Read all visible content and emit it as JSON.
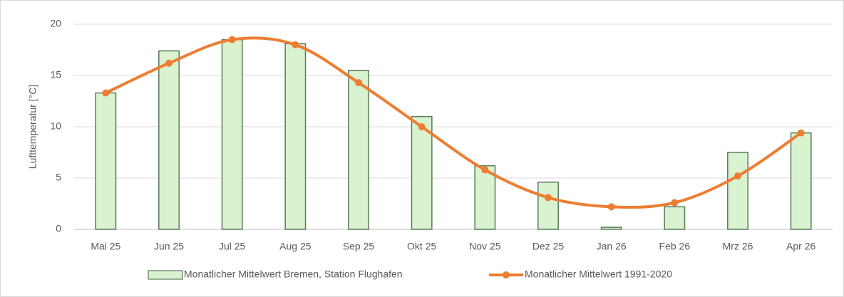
{
  "chart_data": {
    "type": "bar",
    "y_label": "Lufttemperatur [°C]",
    "categories": [
      "Mai 25",
      "Jun 25",
      "Jul 25",
      "Aug 25",
      "Sep 25",
      "Okt 25",
      "Nov 25",
      "Dez 25",
      "Jan 26",
      "Feb 26",
      "Mrz 26",
      "Apr 26"
    ],
    "series": [
      {
        "name": "Monatlicher Mittelwert Bremen, Station Flughafen",
        "type": "bar",
        "color": "#d9f2d0",
        "edge_color": "#5b7a5b",
        "values": [
          13.3,
          17.4,
          18.5,
          18.1,
          15.5,
          11.0,
          6.2,
          4.6,
          0.2,
          2.2,
          7.5,
          9.4
        ]
      },
      {
        "name": "Monatlicher Mittelwert 1991-2020",
        "type": "line",
        "color": "#ed7d31",
        "values": [
          13.3,
          16.2,
          18.5,
          18.0,
          14.3,
          10.0,
          5.8,
          3.1,
          2.2,
          2.6,
          5.2,
          9.4
        ]
      }
    ],
    "ylim": [
      0,
      20
    ],
    "yticks": [
      0,
      5,
      10,
      15,
      20
    ],
    "grid": true,
    "legend": "bottom"
  }
}
